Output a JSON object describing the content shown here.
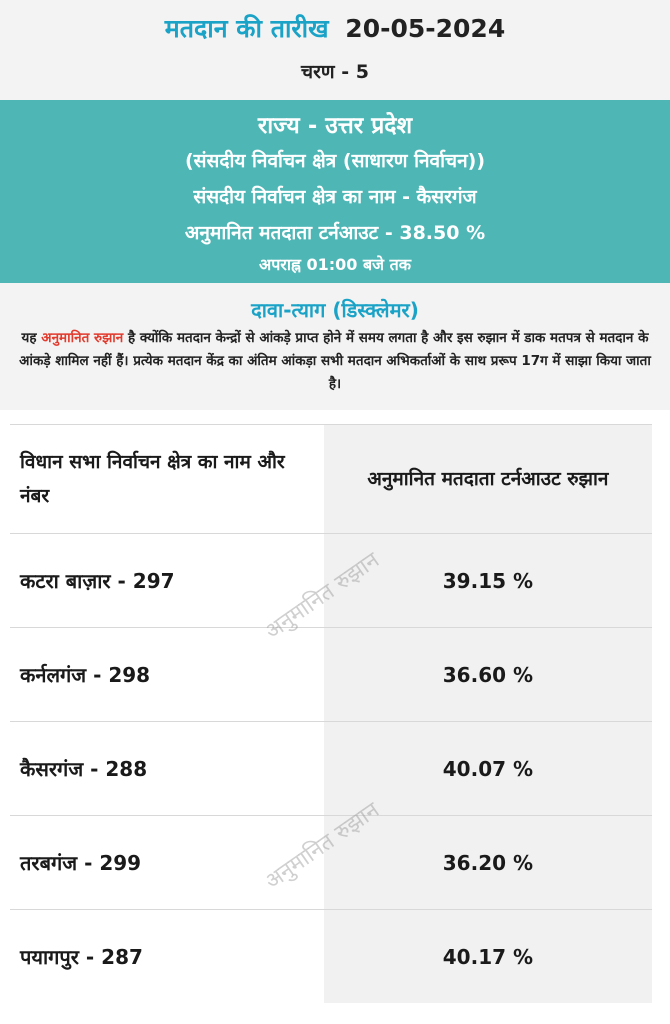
{
  "header": {
    "date_label": "मतदान की तारीख",
    "date_value": "20-05-2024",
    "phase": "चरण - 5"
  },
  "banner": {
    "state": "राज्य - उत्तर प्रदेश",
    "constituency_type": "(संसदीय निर्वाचन क्षेत्र (साधारण निर्वाचन))",
    "constituency_name": "संसदीय निर्वाचन क्षेत्र का नाम - कैसरगंज",
    "turnout": "अनुमानित मतदाता टर्नआउट - 38.50 %",
    "time": "अपराह्न 01:00 बजे तक"
  },
  "disclaimer": {
    "title": "दावा-त्याग (डिस्क्लेमर)",
    "text_before": "यह ",
    "text_highlight": "अनुमानित रुझान",
    "text_after": " है क्योंकि मतदान केन्द्रों से आंकड़े प्राप्त होने में समय लगता है और इस रुझान में डाक मतपत्र से मतदान के आंकड़े शामिल नहीं हैं। प्रत्येक मतदान केंद्र का अंतिम आंकड़ा सभी मतदान अभिकर्ताओं के साथ प्ररूप 17ग में साझा किया जाता है।"
  },
  "table": {
    "headers": [
      "विधान सभा निर्वाचन क्षेत्र का नाम और नंबर",
      "अनुमानित मतदाता टर्नआउट रुझान"
    ],
    "rows": [
      {
        "name": "कटरा बाज़ार - 297",
        "value": "39.15 %"
      },
      {
        "name": "कर्नलगंज - 298",
        "value": "36.60 %"
      },
      {
        "name": "कैसरगंज - 288",
        "value": "40.07 %"
      },
      {
        "name": "तरबगंज - 299",
        "value": "36.20 %"
      },
      {
        "name": "पयागपुर - 287",
        "value": "40.17 %"
      }
    ]
  },
  "watermark": "अनुमानित रुझान",
  "colors": {
    "accent": "#1aa3c7",
    "banner": "#4fb6b6",
    "highlight": "#e23b2e"
  }
}
